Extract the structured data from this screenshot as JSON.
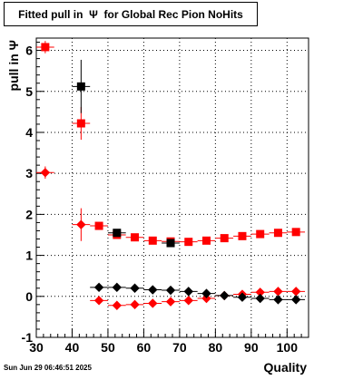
{
  "chart_data": {
    "type": "scatter",
    "title": "Fitted pull in  Ψ  for Global Rec Pion NoHits",
    "xlabel": "Quality",
    "ylabel": "pull in  Ψ",
    "xlim": [
      30,
      106
    ],
    "ylim": [
      -1,
      6.3
    ],
    "x_ticks": [
      30,
      40,
      50,
      60,
      70,
      80,
      90,
      100
    ],
    "y_ticks": [
      -1,
      0,
      1,
      2,
      3,
      4,
      5,
      6
    ],
    "grid": true,
    "series": [
      {
        "marker": "square",
        "color": "#ff0000",
        "points": [
          {
            "x": 32.5,
            "y": 6.08,
            "err": 0.15
          },
          {
            "x": 42.5,
            "y": 4.22,
            "err": 0.4
          },
          {
            "x": 47.5,
            "y": 1.72,
            "err": 0.08
          },
          {
            "x": 52.5,
            "y": 1.5,
            "err": 0.05
          },
          {
            "x": 57.5,
            "y": 1.44,
            "err": 0.05
          },
          {
            "x": 62.5,
            "y": 1.36,
            "err": 0.05
          },
          {
            "x": 67.5,
            "y": 1.34,
            "err": 0.05
          },
          {
            "x": 72.5,
            "y": 1.33,
            "err": 0.05
          },
          {
            "x": 77.5,
            "y": 1.36,
            "err": 0.05
          },
          {
            "x": 82.5,
            "y": 1.42,
            "err": 0.05
          },
          {
            "x": 87.5,
            "y": 1.47,
            "err": 0.05
          },
          {
            "x": 92.5,
            "y": 1.52,
            "err": 0.05
          },
          {
            "x": 97.5,
            "y": 1.55,
            "err": 0.05
          },
          {
            "x": 102.5,
            "y": 1.57,
            "err": 0.05
          }
        ]
      },
      {
        "marker": "square",
        "color": "#000000",
        "points": [
          {
            "x": 42.5,
            "y": 5.12,
            "err": 0.65
          },
          {
            "x": 52.5,
            "y": 1.55,
            "err": 0.05
          },
          {
            "x": 67.5,
            "y": 1.3,
            "err": 0.05
          }
        ]
      },
      {
        "marker": "diamond",
        "color": "#ff0000",
        "points": [
          {
            "x": 32.5,
            "y": 3.02,
            "err": 0.15
          },
          {
            "x": 42.5,
            "y": 1.75,
            "err": 0.4
          },
          {
            "x": 47.5,
            "y": -0.1,
            "err": 0.08
          },
          {
            "x": 52.5,
            "y": -0.22,
            "err": 0.05
          },
          {
            "x": 57.5,
            "y": -0.2,
            "err": 0.05
          },
          {
            "x": 62.5,
            "y": -0.17,
            "err": 0.05
          },
          {
            "x": 67.5,
            "y": -0.13,
            "err": 0.05
          },
          {
            "x": 72.5,
            "y": -0.1,
            "err": 0.05
          },
          {
            "x": 77.5,
            "y": -0.05,
            "err": 0.05
          },
          {
            "x": 82.5,
            "y": 0.02,
            "err": 0.05
          },
          {
            "x": 87.5,
            "y": 0.05,
            "err": 0.05
          },
          {
            "x": 92.5,
            "y": 0.1,
            "err": 0.05
          },
          {
            "x": 97.5,
            "y": 0.12,
            "err": 0.05
          },
          {
            "x": 102.5,
            "y": 0.12,
            "err": 0.05
          }
        ]
      },
      {
        "marker": "diamond",
        "color": "#000000",
        "points": [
          {
            "x": 47.5,
            "y": 0.22,
            "err": 0.05
          },
          {
            "x": 52.5,
            "y": 0.22,
            "err": 0.05
          },
          {
            "x": 57.5,
            "y": 0.2,
            "err": 0.05
          },
          {
            "x": 62.5,
            "y": 0.16,
            "err": 0.05
          },
          {
            "x": 67.5,
            "y": 0.15,
            "err": 0.05
          },
          {
            "x": 72.5,
            "y": 0.12,
            "err": 0.05
          },
          {
            "x": 77.5,
            "y": 0.07,
            "err": 0.05
          },
          {
            "x": 82.5,
            "y": 0.02,
            "err": 0.05
          },
          {
            "x": 87.5,
            "y": -0.02,
            "err": 0.05
          },
          {
            "x": 92.5,
            "y": -0.05,
            "err": 0.05
          },
          {
            "x": 97.5,
            "y": -0.08,
            "err": 0.05
          },
          {
            "x": 102.5,
            "y": -0.08,
            "err": 0.05
          }
        ]
      }
    ]
  },
  "footer": {
    "timestamp": "Sun Jun 29 06:46:51 2025"
  }
}
